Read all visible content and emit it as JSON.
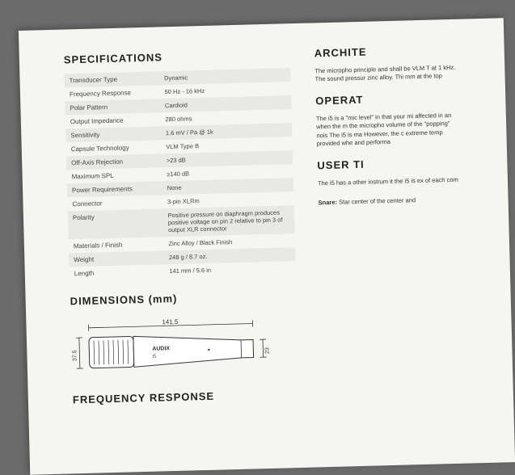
{
  "colors": {
    "background": "#6b6b6b",
    "paper": "#f5f5f2",
    "row_odd": "#e8e8e6",
    "row_even": "#f5f5f2",
    "text": "#444",
    "heading": "#222",
    "diagram_stroke": "#333"
  },
  "typography": {
    "heading_fontsize": 13,
    "heading_weight": 700,
    "heading_letterspacing": 1,
    "table_fontsize": 8,
    "body_fontsize": 7.5
  },
  "specs": {
    "title": "SPECIFICATIONS",
    "rows": [
      {
        "label": "Transducer Type",
        "value": "Dynamic"
      },
      {
        "label": "Frequency Response",
        "value": "50 Hz - 16 kHz"
      },
      {
        "label": "Polar Pattern",
        "value": "Cardioid"
      },
      {
        "label": "Output Impedance",
        "value": "280 ohms"
      },
      {
        "label": "Sensitivity",
        "value": "1.6 mV / Pa @ 1k"
      },
      {
        "label": "Capsule Technology",
        "value": "VLM Type B"
      },
      {
        "label": "Off-Axis Rejection",
        "value": ">23 dB"
      },
      {
        "label": "Maximum SPL",
        "value": "≥140 dB"
      },
      {
        "label": "Power Requirements",
        "value": "None"
      },
      {
        "label": "Connector",
        "value": "3-pin XLRm"
      },
      {
        "label": "Polarity",
        "value": "Positive pressure on diaphragm produces positive voltage on pin 2 relative to pin 3 of output XLR connector"
      },
      {
        "label": "Materials / Finish",
        "value": "Zinc Alloy / Black Finish"
      },
      {
        "label": "Weight",
        "value": "248 g / 8.7 oz."
      },
      {
        "label": "Length",
        "value": "141 mm / 5.6 in"
      }
    ]
  },
  "dimensions": {
    "title": "DIMENSIONS (mm)",
    "diagram": {
      "total_length": 141.5,
      "head_height": 37.5,
      "tail_height": 23,
      "brand_label": "AUDIX",
      "model_label": "i5",
      "stroke_color": "#333",
      "fill_color": "#ffffff"
    }
  },
  "freq_response": {
    "title": "FREQUENCY RESPONSE"
  },
  "right": {
    "architecture": {
      "title": "ARCHITE",
      "body": "The micropho principle and shall be VLM T at 1 kHz. The sound pressur zinc alloy. Thi mm at the top"
    },
    "operation": {
      "title": "OPERAT",
      "body": "The i5 is a \"mic level\" in that your mi affected in an when the m the micropho volume of the \"popping\" nois The i5 is ma However, the c extreme temp provided whe and performa"
    },
    "user_tips": {
      "title": "USER TI",
      "body": "The i5 has a other instrum it the i5 is ex of each com"
    },
    "snare": {
      "label": "Snare:",
      "body": " Star center of the center and"
    }
  }
}
